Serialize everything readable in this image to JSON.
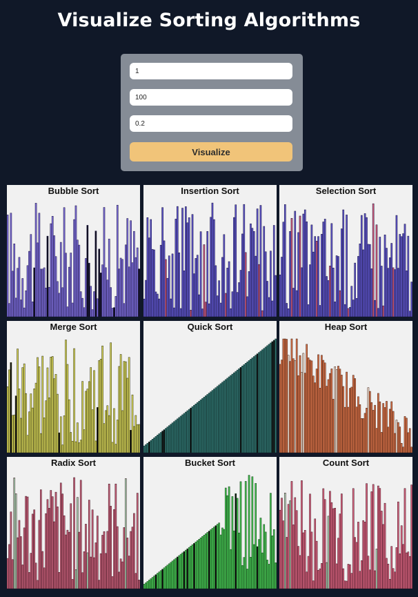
{
  "header": {
    "title": "Visualize Sorting Algorithms"
  },
  "controls": {
    "field1_value": "1",
    "field2_value": "100",
    "field3_value": "0.2",
    "visualize_label": "Visualize"
  },
  "panels": [
    {
      "title": "Bubble Sort",
      "fill": "#7b6cd6",
      "stroke": "#1a1340",
      "accent": "#0d0d1a",
      "style": "random"
    },
    {
      "title": "Insertion Sort",
      "fill": "#5e55c9",
      "stroke": "#14113a",
      "accent": "#d25a78",
      "style": "random"
    },
    {
      "title": "Selection Sort",
      "fill": "#5e55c9",
      "stroke": "#14113a",
      "accent": "#d25a78",
      "style": "random"
    },
    {
      "title": "Merge Sort",
      "fill": "#d6d45a",
      "stroke": "#2a2a0a",
      "accent": "#111111",
      "style": "random"
    },
    {
      "title": "Quick Sort",
      "fill": "#2f6e6a",
      "stroke": "#0a2a28",
      "accent": "#111111",
      "style": "sorted"
    },
    {
      "title": "Heap Sort",
      "fill": "#d8734a",
      "stroke": "#3a1608",
      "accent": "#efe2d6",
      "style": "desc"
    },
    {
      "title": "Radix Sort",
      "fill": "#c46079",
      "stroke": "#3a0e1a",
      "accent": "#a7d6b6",
      "style": "random"
    },
    {
      "title": "Bucket Sort",
      "fill": "#46c052",
      "stroke": "#0d3a12",
      "accent": "#111111",
      "style": "partial"
    },
    {
      "title": "Count Sort",
      "fill": "#d6637f",
      "stroke": "#3a0e1a",
      "accent": "#a7d6b6",
      "style": "random"
    }
  ]
}
